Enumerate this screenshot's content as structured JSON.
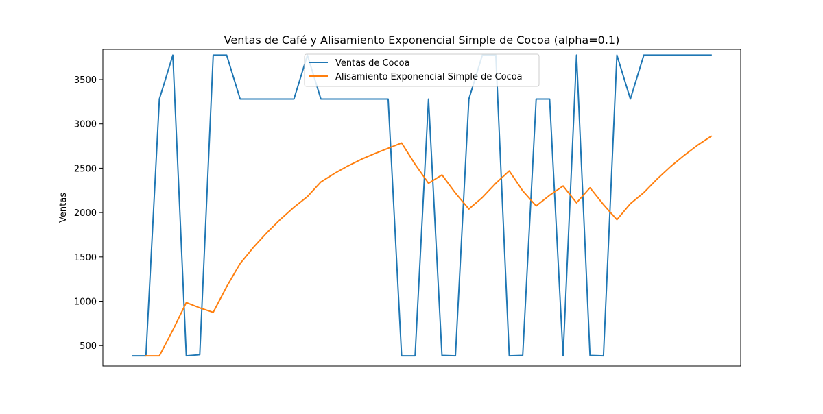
{
  "chart_data": {
    "type": "line",
    "title": "Ventas de Café y Alisamiento Exponencial Simple de Cocoa (alpha=0.1)",
    "xlabel": "",
    "ylabel": "Ventas",
    "x": [
      0,
      1,
      2,
      3,
      4,
      5,
      6,
      7,
      8,
      9,
      10,
      11,
      12,
      13,
      14,
      15,
      16,
      17,
      18,
      19,
      20,
      21,
      22,
      23,
      24,
      25,
      26,
      27,
      28,
      29,
      30,
      31,
      32,
      33,
      34,
      35,
      36,
      37,
      38,
      39,
      40,
      41,
      42,
      43
    ],
    "xlim": [
      -2.2,
      45.2
    ],
    "ylim": [
      270,
      3840
    ],
    "yticks": [
      500,
      1000,
      1500,
      2000,
      2500,
      3000,
      3500
    ],
    "grid": false,
    "legend_position": "upper center",
    "series": [
      {
        "name": "Ventas de Cocoa",
        "color": "#1f77b4",
        "values": [
          385,
          385,
          3280,
          3775,
          385,
          398,
          3775,
          3775,
          3280,
          3280,
          3280,
          3280,
          3280,
          3775,
          3280,
          3280,
          3280,
          3280,
          3280,
          3280,
          385,
          385,
          3280,
          390,
          385,
          3280,
          3775,
          3775,
          385,
          390,
          3280,
          3280,
          385,
          3775,
          390,
          385,
          3775,
          3280,
          3775,
          3775,
          3775,
          3775,
          3775,
          3775
        ]
      },
      {
        "name": "Alisamiento Exponencial Simple de Cocoa",
        "color": "#ff7f0e",
        "values": [
          null,
          385,
          385,
          675,
          985,
          925,
          875,
          1165,
          1425,
          1610,
          1775,
          1925,
          2060,
          2180,
          2345,
          2440,
          2525,
          2600,
          2665,
          2725,
          2785,
          2545,
          2330,
          2425,
          2220,
          2040,
          2170,
          2330,
          2470,
          2245,
          2075,
          2195,
          2300,
          2110,
          2280,
          2090,
          1920,
          2100,
          2225,
          2380,
          2520,
          2645,
          2760,
          2860
        ]
      }
    ]
  }
}
